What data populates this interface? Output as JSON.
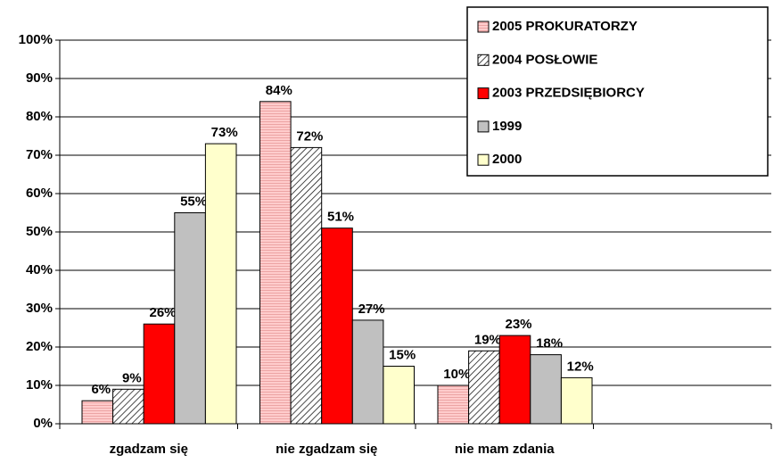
{
  "chart_data": {
    "type": "bar",
    "categories": [
      "zgadzam się",
      "nie zgadzam się",
      "nie mam zdania",
      null
    ],
    "series": [
      {
        "name": "2005 PROKURATORZY",
        "color": "#ffcccc",
        "pattern": "horizontal",
        "values": [
          6,
          84,
          10,
          null
        ],
        "value_labels": [
          "6%",
          "84%",
          "10%",
          null
        ]
      },
      {
        "name": "2004 POSŁOWIE",
        "color": "#ffffff",
        "pattern": "diagonal",
        "values": [
          9,
          72,
          19,
          null
        ],
        "value_labels": [
          "9%",
          "72%",
          "19%",
          null
        ]
      },
      {
        "name": "2003 PRZEDSIĘBIORCY",
        "color": "#ff0000",
        "values": [
          26,
          51,
          23,
          null
        ],
        "value_labels": [
          "26%",
          "51%",
          "23%",
          null
        ]
      },
      {
        "name": "1999",
        "color": "#c0c0c0",
        "values": [
          55,
          27,
          18,
          null
        ],
        "value_labels": [
          "55%",
          "27%",
          "18%",
          null
        ]
      },
      {
        "name": "2000",
        "color": "#ffffcc",
        "values": [
          73,
          15,
          12,
          null
        ],
        "value_labels": [
          "73%",
          "15%",
          "12%",
          null
        ]
      }
    ],
    "ylim": [
      0,
      100
    ],
    "yticks": [
      {
        "value": 0,
        "label": "0%"
      },
      {
        "value": 10,
        "label": "10%"
      },
      {
        "value": 20,
        "label": "20%"
      },
      {
        "value": 30,
        "label": "30%"
      },
      {
        "value": 40,
        "label": "40%"
      },
      {
        "value": 50,
        "label": "50%"
      },
      {
        "value": 60,
        "label": "60%"
      },
      {
        "value": 70,
        "label": "70%"
      },
      {
        "value": 80,
        "label": "80%"
      },
      {
        "value": 90,
        "label": "90%"
      },
      {
        "value": 100,
        "label": "100%"
      }
    ],
    "grid": true,
    "legend": "top-right"
  }
}
